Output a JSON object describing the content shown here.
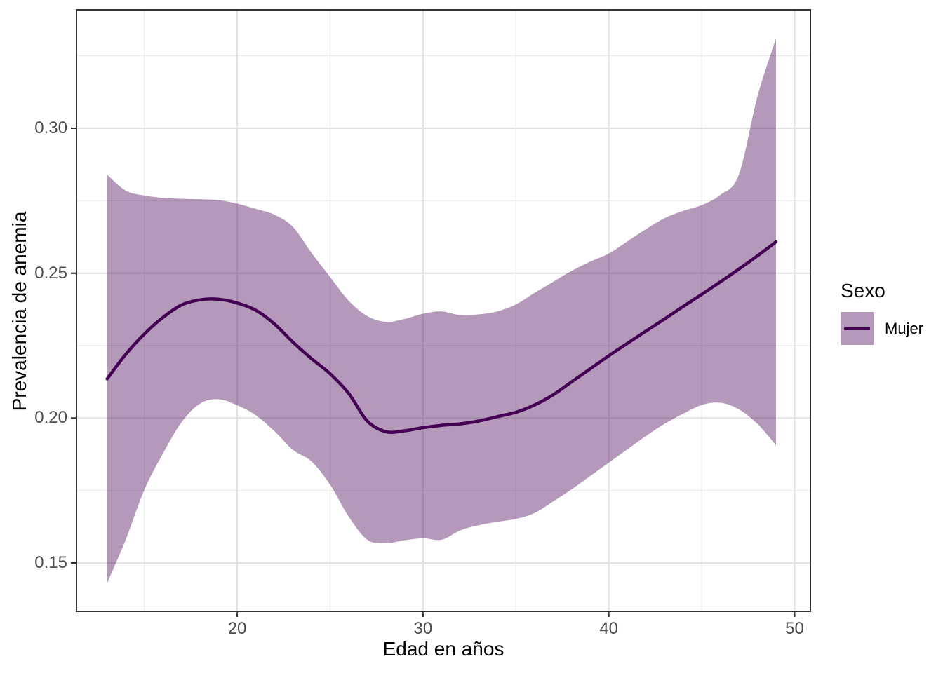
{
  "chart_data": {
    "type": "line",
    "title": "",
    "xlabel": "Edad en años",
    "ylabel": "Prevalencia de anemia",
    "xlim": [
      11.35,
      50.85
    ],
    "ylim": [
      0.1333,
      0.3409
    ],
    "grid": "on",
    "legend_position": "right",
    "legend": {
      "title": "Sexo",
      "entries": [
        {
          "label": "Mujer",
          "color": "#440154"
        }
      ]
    },
    "axes": {
      "x": {
        "major_ticks": [
          20,
          30,
          40,
          50
        ],
        "major_labels": [
          "20",
          "30",
          "40",
          "50"
        ],
        "minor_ticks": [
          15,
          25,
          35,
          45
        ]
      },
      "y": {
        "major_ticks": [
          0.15,
          0.2,
          0.25,
          0.3
        ],
        "major_labels": [
          "0.15",
          "0.20",
          "0.25",
          "0.30"
        ],
        "minor_ticks": [
          0.175,
          0.225,
          0.275,
          0.325
        ]
      }
    },
    "x": [
      13,
      14,
      15,
      16,
      17,
      18,
      19,
      20,
      21,
      22,
      23,
      24,
      25,
      26,
      27,
      28,
      29,
      30,
      31,
      32,
      33,
      34,
      35,
      36,
      37,
      38,
      39,
      40,
      41,
      42,
      43,
      44,
      45,
      46,
      47,
      48,
      49
    ],
    "series": [
      {
        "name": "Mujer",
        "values": [
          0.2135,
          0.222,
          0.229,
          0.2347,
          0.239,
          0.2408,
          0.241,
          0.2397,
          0.2372,
          0.2325,
          0.2262,
          0.2205,
          0.2153,
          0.2085,
          0.199,
          0.1953,
          0.1956,
          0.1967,
          0.1975,
          0.198,
          0.199,
          0.2005,
          0.202,
          0.2045,
          0.208,
          0.2125,
          0.217,
          0.2215,
          0.2258,
          0.23,
          0.2342,
          0.2385,
          0.2427,
          0.247,
          0.2514,
          0.256,
          0.2608
        ],
        "ci_upper": [
          0.284,
          0.2785,
          0.2768,
          0.276,
          0.2757,
          0.2755,
          0.2752,
          0.274,
          0.2722,
          0.2702,
          0.266,
          0.257,
          0.2487,
          0.2405,
          0.2352,
          0.2332,
          0.2342,
          0.236,
          0.2368,
          0.2355,
          0.2358,
          0.2368,
          0.2392,
          0.2432,
          0.247,
          0.2508,
          0.254,
          0.2568,
          0.261,
          0.2652,
          0.269,
          0.2715,
          0.2735,
          0.277,
          0.284,
          0.311,
          0.331
        ],
        "ci_lower": [
          0.143,
          0.158,
          0.1752,
          0.1877,
          0.1985,
          0.205,
          0.2065,
          0.2044,
          0.201,
          0.1955,
          0.189,
          0.185,
          0.177,
          0.166,
          0.158,
          0.1568,
          0.1578,
          0.1585,
          0.158,
          0.1612,
          0.163,
          0.1642,
          0.1652,
          0.1672,
          0.1712,
          0.1754,
          0.18,
          0.1846,
          0.1892,
          0.1938,
          0.198,
          0.2015,
          0.2045,
          0.2053,
          0.203,
          0.198,
          0.1906
        ]
      }
    ],
    "style": {
      "line_color": "#440154",
      "ribbon_color": "#440154",
      "ribbon_opacity": 0.4,
      "major_grid_color": "#E3E3E3",
      "minor_grid_color": "#EDEDED",
      "panel_border_color": "#333333",
      "tick_color": "#333333",
      "tick_label_color": "#4D4D4D"
    }
  }
}
